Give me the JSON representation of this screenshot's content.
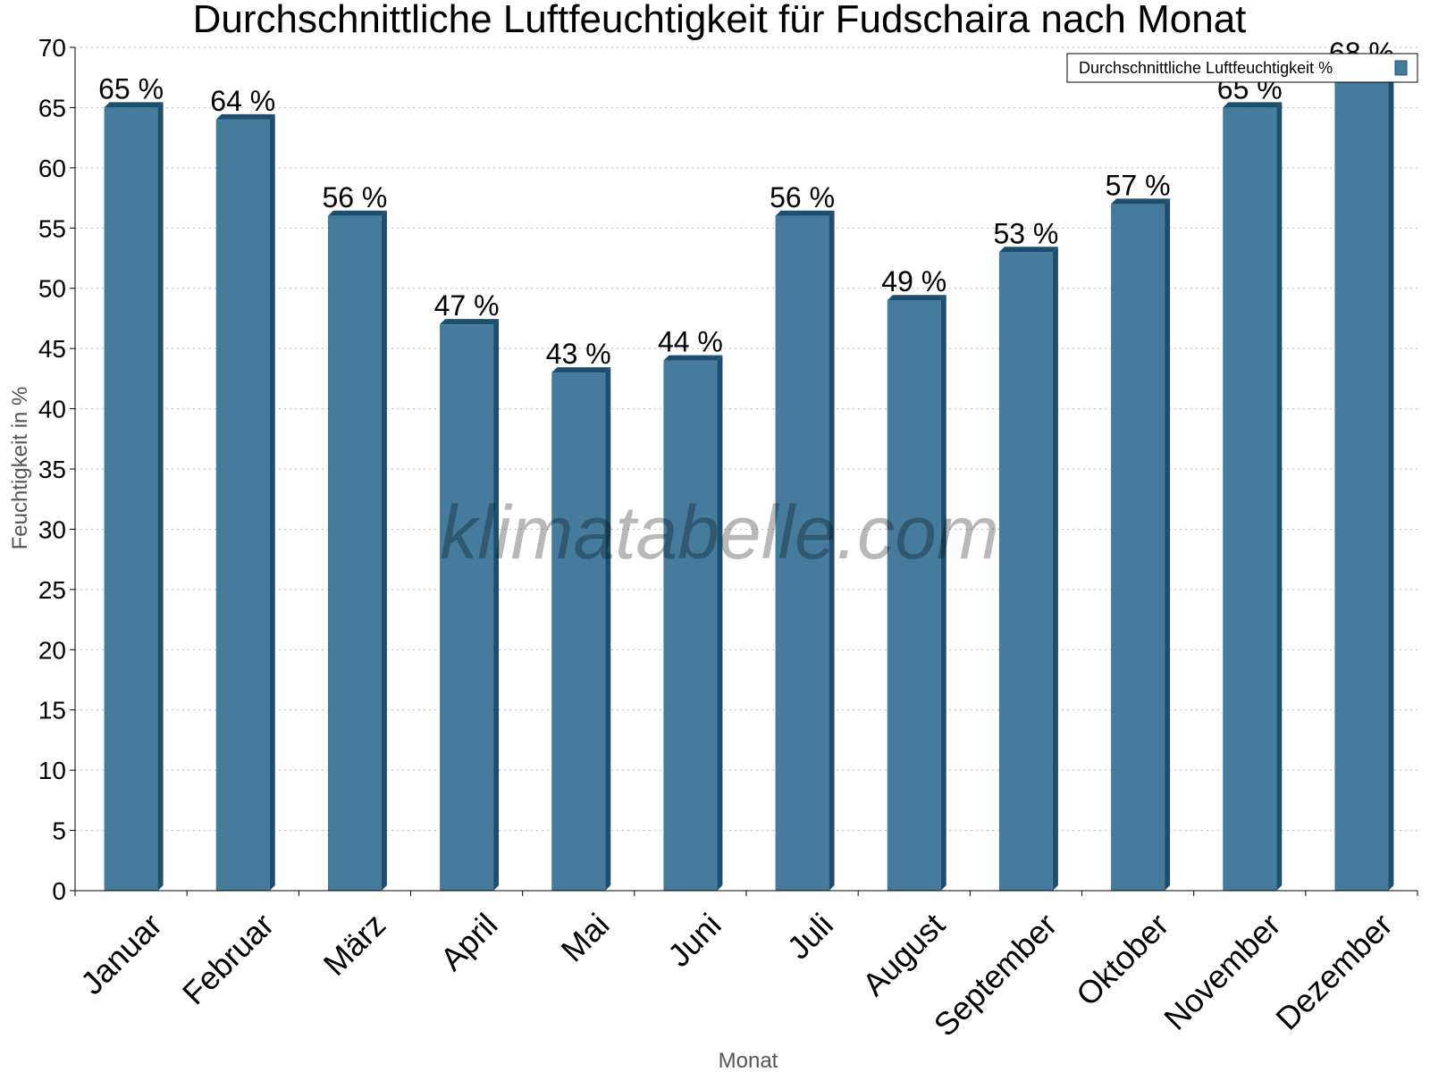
{
  "chart_data": {
    "type": "bar",
    "title": "Durchschnittliche Luftfeuchtigkeit für Fudschaira nach Monat",
    "xlabel": "Monat",
    "ylabel": "Feuchtigkeit in %",
    "categories": [
      "Januar",
      "Februar",
      "März",
      "April",
      "Mai",
      "Juni",
      "Juli",
      "August",
      "September",
      "Oktober",
      "November",
      "Dezember"
    ],
    "series": [
      {
        "name": "Durchschnittliche Luftfeuchtigkeit %",
        "values": [
          65,
          64,
          56,
          47,
          43,
          44,
          56,
          49,
          53,
          57,
          65,
          68
        ],
        "labels": [
          "65 %",
          "64 %",
          "56 %",
          "47 %",
          "43 %",
          "44 %",
          "56 %",
          "49 %",
          "53 %",
          "57 %",
          "65 %",
          "68 %"
        ]
      }
    ],
    "ylim": [
      0,
      70
    ],
    "yticks": [
      0,
      5,
      10,
      15,
      20,
      25,
      30,
      35,
      40,
      45,
      50,
      55,
      60,
      65,
      70
    ],
    "grid": true,
    "legend_position": "top-right",
    "colors": {
      "bar": "#457b9d",
      "bar_side": "#1d4e6e",
      "grid": "#bbbbbb"
    }
  },
  "watermark": "klimatabelle.com"
}
